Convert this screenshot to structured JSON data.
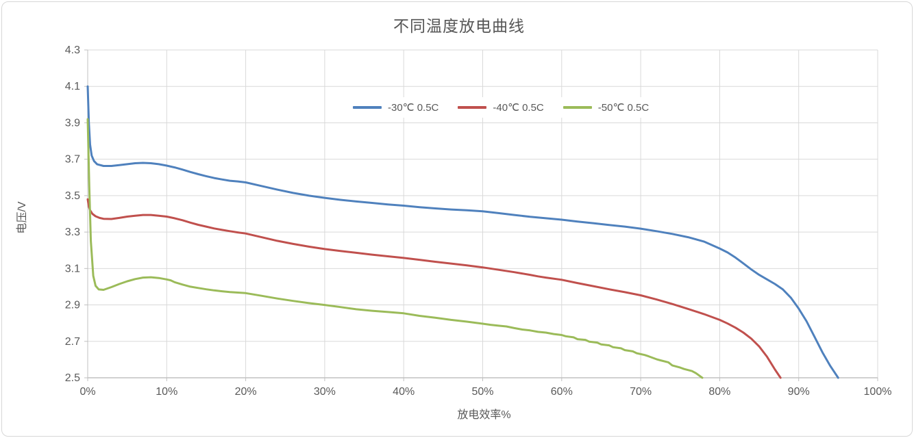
{
  "chart": {
    "title": "不同温度放电曲线",
    "xlabel": "放电效率%",
    "ylabel": "电压/V"
  },
  "chart_data": {
    "type": "line",
    "title": "不同温度放电曲线",
    "xlabel": "放电效率%",
    "ylabel": "电压/V",
    "xlim": [
      0,
      100
    ],
    "ylim": [
      2.5,
      4.3
    ],
    "grid": true,
    "legend_position": "top-center-inside",
    "x_ticks": {
      "values": [
        0,
        10,
        20,
        30,
        40,
        50,
        60,
        70,
        80,
        90,
        100
      ],
      "labels": [
        "0%",
        "10%",
        "20%",
        "30%",
        "40%",
        "50%",
        "60%",
        "70%",
        "80%",
        "90%",
        "100%"
      ]
    },
    "y_ticks": {
      "values": [
        2.5,
        2.7,
        2.9,
        3.1,
        3.3,
        3.5,
        3.7,
        3.9,
        4.1,
        4.3
      ],
      "labels": [
        "2.5",
        "2.7",
        "2.9",
        "3.1",
        "3.3",
        "3.5",
        "3.7",
        "3.9",
        "4.1",
        "4.3"
      ]
    },
    "style": {
      "gridline_color": "#d9d9d9",
      "axis_color": "#c0c0c0",
      "tick_label_color": "#595959",
      "line_width": 3
    },
    "series": [
      {
        "name": "-30℃ 0.5C",
        "color": "#4F81BD",
        "points": [
          [
            0,
            4.1
          ],
          [
            0.15,
            3.9
          ],
          [
            0.3,
            3.78
          ],
          [
            0.5,
            3.72
          ],
          [
            0.8,
            3.69
          ],
          [
            1.2,
            3.672
          ],
          [
            2,
            3.663
          ],
          [
            3,
            3.663
          ],
          [
            4,
            3.668
          ],
          [
            5,
            3.673
          ],
          [
            6,
            3.678
          ],
          [
            7,
            3.68
          ],
          [
            8,
            3.678
          ],
          [
            9,
            3.673
          ],
          [
            10,
            3.665
          ],
          [
            11,
            3.655
          ],
          [
            12,
            3.643
          ],
          [
            13,
            3.63
          ],
          [
            14,
            3.618
          ],
          [
            15,
            3.607
          ],
          [
            16,
            3.597
          ],
          [
            17,
            3.589
          ],
          [
            18,
            3.582
          ],
          [
            19,
            3.578
          ],
          [
            20,
            3.573
          ],
          [
            22,
            3.553
          ],
          [
            24,
            3.533
          ],
          [
            26,
            3.515
          ],
          [
            28,
            3.5
          ],
          [
            30,
            3.488
          ],
          [
            32,
            3.477
          ],
          [
            34,
            3.468
          ],
          [
            36,
            3.46
          ],
          [
            38,
            3.452
          ],
          [
            40,
            3.445
          ],
          [
            42,
            3.437
          ],
          [
            44,
            3.43
          ],
          [
            46,
            3.424
          ],
          [
            48,
            3.42
          ],
          [
            50,
            3.414
          ],
          [
            52,
            3.404
          ],
          [
            54,
            3.394
          ],
          [
            56,
            3.384
          ],
          [
            58,
            3.376
          ],
          [
            60,
            3.368
          ],
          [
            62,
            3.358
          ],
          [
            64,
            3.349
          ],
          [
            66,
            3.339
          ],
          [
            68,
            3.33
          ],
          [
            70,
            3.319
          ],
          [
            72,
            3.305
          ],
          [
            74,
            3.29
          ],
          [
            76,
            3.272
          ],
          [
            78,
            3.248
          ],
          [
            80,
            3.21
          ],
          [
            81,
            3.188
          ],
          [
            82,
            3.16
          ],
          [
            83,
            3.128
          ],
          [
            84,
            3.095
          ],
          [
            85,
            3.065
          ],
          [
            86,
            3.04
          ],
          [
            87,
            3.015
          ],
          [
            88,
            2.985
          ],
          [
            89,
            2.94
          ],
          [
            90,
            2.88
          ],
          [
            91,
            2.81
          ],
          [
            92,
            2.725
          ],
          [
            93,
            2.64
          ],
          [
            94,
            2.565
          ],
          [
            95,
            2.5
          ]
        ]
      },
      {
        "name": "-40℃ 0.5C",
        "color": "#C0504D",
        "points": [
          [
            0,
            3.48
          ],
          [
            0.15,
            3.44
          ],
          [
            0.3,
            3.42
          ],
          [
            0.6,
            3.4
          ],
          [
            1,
            3.387
          ],
          [
            1.5,
            3.378
          ],
          [
            2,
            3.373
          ],
          [
            3,
            3.372
          ],
          [
            4,
            3.378
          ],
          [
            5,
            3.385
          ],
          [
            6,
            3.39
          ],
          [
            7,
            3.394
          ],
          [
            8,
            3.394
          ],
          [
            9,
            3.39
          ],
          [
            10,
            3.385
          ],
          [
            11,
            3.376
          ],
          [
            12,
            3.365
          ],
          [
            13,
            3.352
          ],
          [
            14,
            3.34
          ],
          [
            15,
            3.33
          ],
          [
            16,
            3.32
          ],
          [
            17,
            3.312
          ],
          [
            18,
            3.305
          ],
          [
            19,
            3.298
          ],
          [
            20,
            3.292
          ],
          [
            22,
            3.272
          ],
          [
            24,
            3.252
          ],
          [
            26,
            3.235
          ],
          [
            28,
            3.22
          ],
          [
            30,
            3.207
          ],
          [
            32,
            3.196
          ],
          [
            34,
            3.186
          ],
          [
            36,
            3.176
          ],
          [
            38,
            3.167
          ],
          [
            40,
            3.158
          ],
          [
            42,
            3.148
          ],
          [
            44,
            3.137
          ],
          [
            46,
            3.127
          ],
          [
            48,
            3.117
          ],
          [
            50,
            3.106
          ],
          [
            52,
            3.093
          ],
          [
            54,
            3.08
          ],
          [
            56,
            3.065
          ],
          [
            57,
            3.057
          ],
          [
            58,
            3.05
          ],
          [
            60,
            3.038
          ],
          [
            62,
            3.02
          ],
          [
            64,
            3.003
          ],
          [
            66,
            2.986
          ],
          [
            68,
            2.97
          ],
          [
            70,
            2.953
          ],
          [
            72,
            2.93
          ],
          [
            74,
            2.905
          ],
          [
            76,
            2.878
          ],
          [
            78,
            2.85
          ],
          [
            80,
            2.818
          ],
          [
            81,
            2.798
          ],
          [
            82,
            2.775
          ],
          [
            83,
            2.748
          ],
          [
            84,
            2.715
          ],
          [
            85,
            2.672
          ],
          [
            86,
            2.615
          ],
          [
            87,
            2.545
          ],
          [
            87.7,
            2.5
          ]
        ]
      },
      {
        "name": "-50℃ 0.5C",
        "color": "#9BBB59",
        "points": [
          [
            0,
            3.92
          ],
          [
            0.2,
            3.55
          ],
          [
            0.4,
            3.25
          ],
          [
            0.7,
            3.06
          ],
          [
            1.0,
            3.005
          ],
          [
            1.4,
            2.985
          ],
          [
            2,
            2.983
          ],
          [
            3,
            2.998
          ],
          [
            4,
            3.015
          ],
          [
            5,
            3.03
          ],
          [
            6,
            3.042
          ],
          [
            7,
            3.05
          ],
          [
            8,
            3.052
          ],
          [
            9,
            3.048
          ],
          [
            10,
            3.04
          ],
          [
            10.5,
            3.035
          ],
          [
            11,
            3.025
          ],
          [
            12,
            3.012
          ],
          [
            13,
            3.0
          ],
          [
            14,
            2.993
          ],
          [
            15,
            2.986
          ],
          [
            16,
            2.98
          ],
          [
            17,
            2.975
          ],
          [
            18,
            2.971
          ],
          [
            19,
            2.968
          ],
          [
            20,
            2.965
          ],
          [
            22,
            2.95
          ],
          [
            24,
            2.935
          ],
          [
            26,
            2.922
          ],
          [
            28,
            2.91
          ],
          [
            30,
            2.9
          ],
          [
            32,
            2.888
          ],
          [
            34,
            2.876
          ],
          [
            36,
            2.868
          ],
          [
            38,
            2.861
          ],
          [
            40,
            2.854
          ],
          [
            42,
            2.84
          ],
          [
            44,
            2.83
          ],
          [
            46,
            2.818
          ],
          [
            48,
            2.808
          ],
          [
            50,
            2.797
          ],
          [
            51,
            2.791
          ],
          [
            52,
            2.786
          ],
          [
            53,
            2.782
          ],
          [
            54,
            2.773
          ],
          [
            55,
            2.765
          ],
          [
            56,
            2.76
          ],
          [
            57,
            2.752
          ],
          [
            58,
            2.748
          ],
          [
            59,
            2.74
          ],
          [
            60,
            2.735
          ],
          [
            60.5,
            2.728
          ],
          [
            61.5,
            2.722
          ],
          [
            62,
            2.712
          ],
          [
            63,
            2.708
          ],
          [
            63.5,
            2.698
          ],
          [
            64.5,
            2.693
          ],
          [
            65,
            2.683
          ],
          [
            66,
            2.678
          ],
          [
            66.5,
            2.668
          ],
          [
            67.5,
            2.662
          ],
          [
            68,
            2.652
          ],
          [
            69,
            2.645
          ],
          [
            69.5,
            2.635
          ],
          [
            70.5,
            2.625
          ],
          [
            71,
            2.618
          ],
          [
            72,
            2.602
          ],
          [
            72.5,
            2.596
          ],
          [
            73.5,
            2.585
          ],
          [
            74,
            2.568
          ],
          [
            75,
            2.556
          ],
          [
            75.5,
            2.548
          ],
          [
            76.5,
            2.537
          ],
          [
            77,
            2.525
          ],
          [
            77.8,
            2.5
          ]
        ]
      }
    ]
  }
}
